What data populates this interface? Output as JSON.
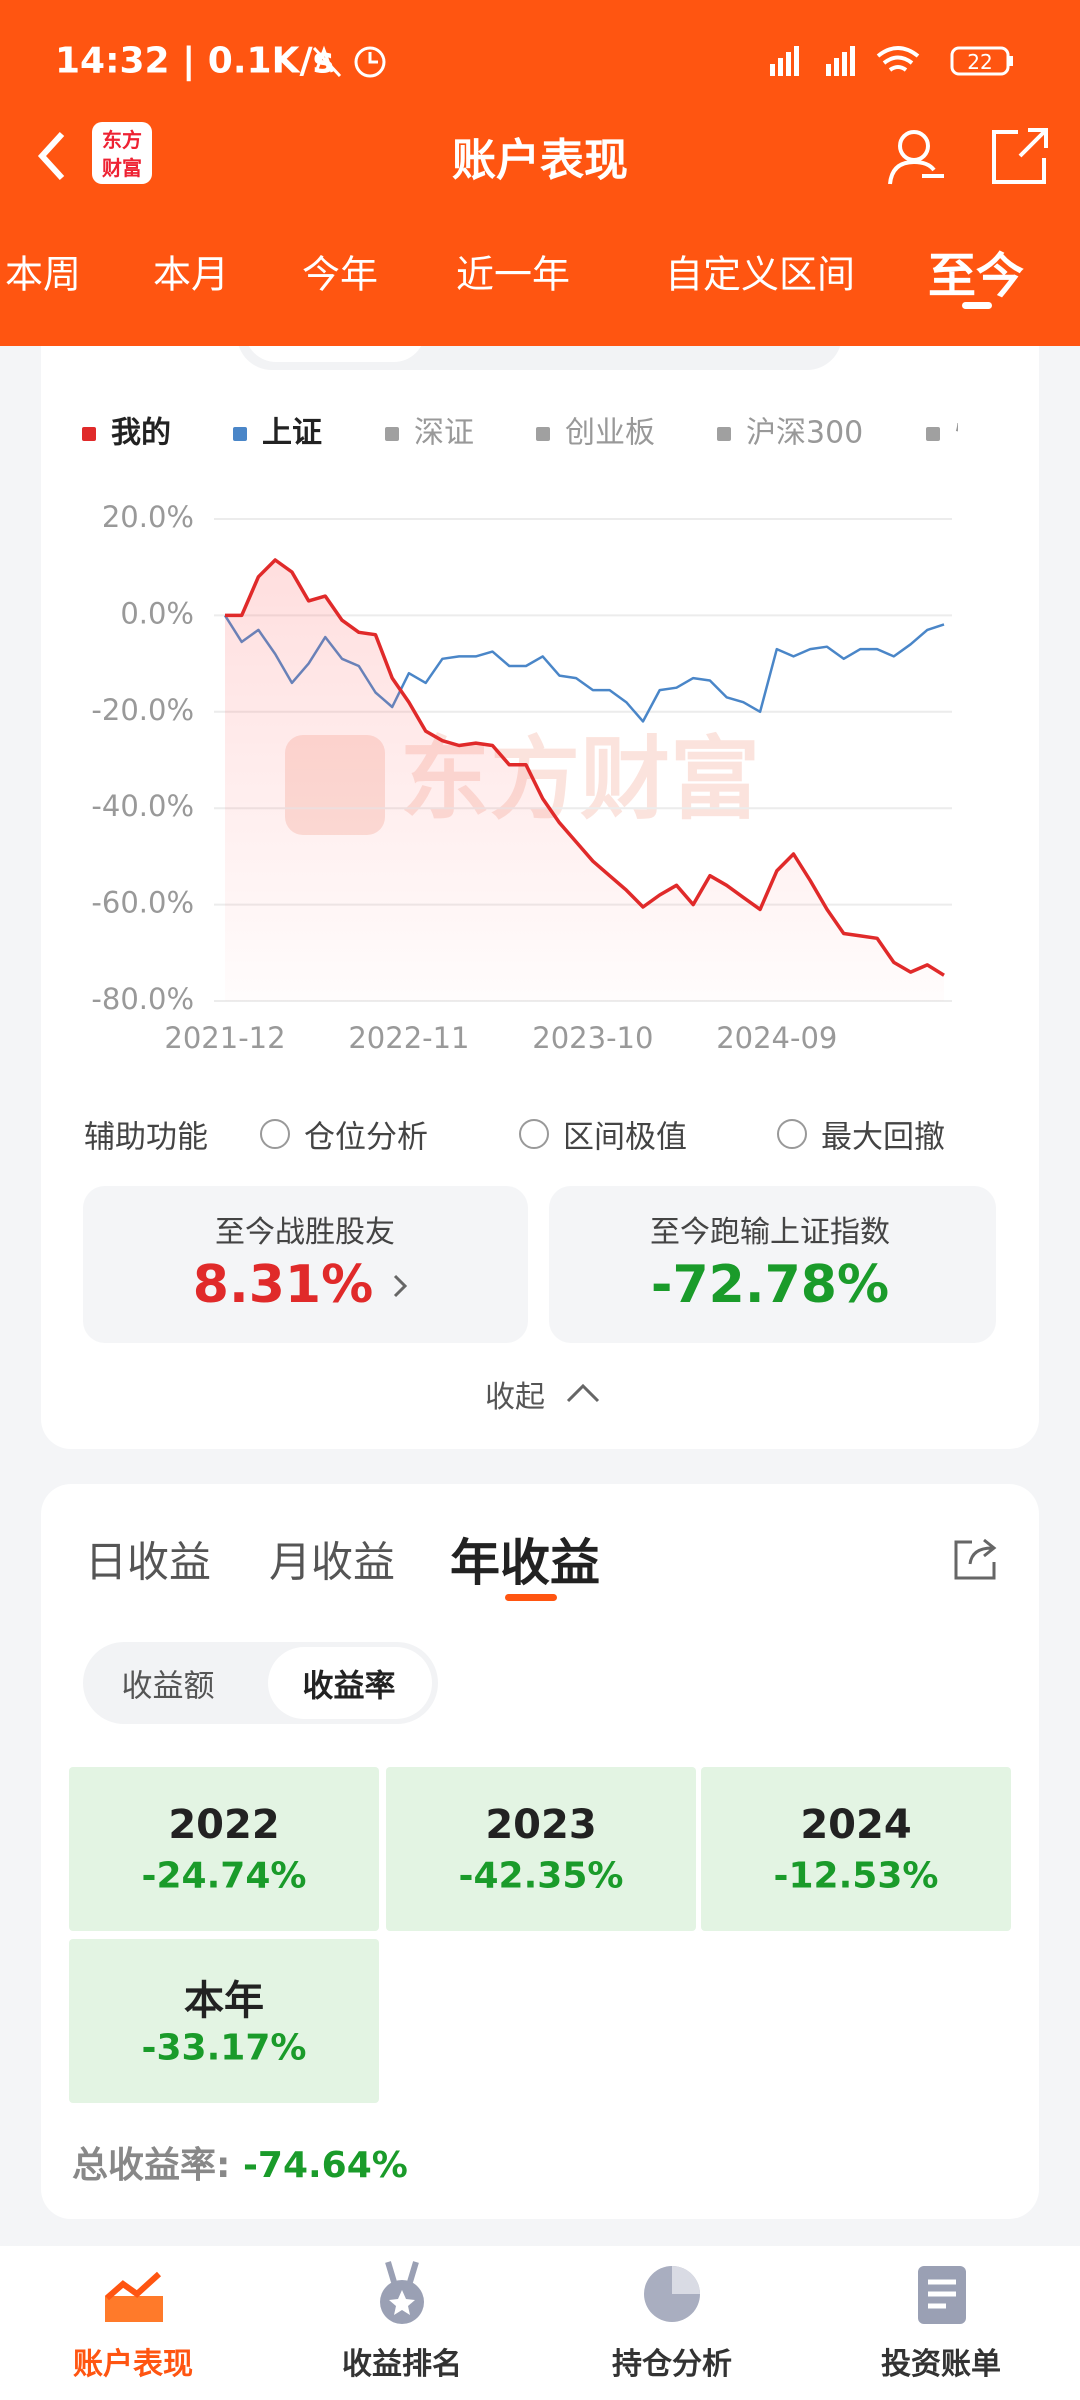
{
  "status_bar": {
    "time": "14:32 | 0.1K/s",
    "battery": "22"
  },
  "header": {
    "logo_top": "东方",
    "logo_bottom": "财富",
    "title": "账户表现"
  },
  "tabs": [
    "本周",
    "本月",
    "今年",
    "近一年",
    "自定义区间",
    "至今"
  ],
  "chart_data": {
    "type": "line",
    "categories": [
      "2021-12",
      "2022-01",
      "2022-02",
      "2022-03",
      "2022-04",
      "2022-05",
      "2022-06",
      "2022-07",
      "2022-08",
      "2022-09",
      "2022-10",
      "2022-11",
      "2022-12",
      "2023-01",
      "2023-02",
      "2023-03",
      "2023-04",
      "2023-05",
      "2023-06",
      "2023-07",
      "2023-08",
      "2023-09",
      "2023-10",
      "2023-11",
      "2023-12",
      "2024-01",
      "2024-02",
      "2024-03",
      "2024-04",
      "2024-05",
      "2024-06",
      "2024-07",
      "2024-08",
      "2024-09",
      "2024-10",
      "2024-11",
      "2024-12",
      "2025-01",
      "2025-02",
      "2025-03",
      "2025-04",
      "2025-05",
      "2025-06",
      "2025-07"
    ],
    "xticks": [
      "2021-12",
      "2022-11",
      "2023-10",
      "2024-09"
    ],
    "ylim": [
      -80,
      20
    ],
    "yticks": [
      {
        "value": -80,
        "label": "-80.0%"
      },
      {
        "value": -60,
        "label": "-60.0%"
      },
      {
        "value": -40,
        "label": "-40.0%"
      },
      {
        "value": -20,
        "label": "-20.0%"
      },
      {
        "value": 0,
        "label": "0.0%"
      },
      {
        "value": 20,
        "label": "20.0%"
      }
    ],
    "grid": true,
    "watermark": "东方财富",
    "series": [
      {
        "name": "我的",
        "color": "#e02a2a",
        "values": [
          0,
          0,
          8,
          11.5,
          9,
          3,
          4,
          -1,
          -3.5,
          -4,
          -13,
          -18,
          -24,
          -26,
          -27,
          -26.5,
          -27,
          -31,
          -31,
          -38,
          -43,
          -47,
          -51,
          -54,
          -57,
          -60.5,
          -58,
          -56,
          -60,
          -54,
          -56,
          -58.5,
          -61,
          -53,
          -49.5,
          -55,
          -61,
          -66,
          -66.5,
          -67,
          -72,
          -74,
          -72.5,
          -74.64
        ]
      },
      {
        "name": "上证",
        "color": "#4a86c8",
        "values": [
          0,
          -5.5,
          -3,
          -8,
          -14,
          -10,
          -4.5,
          -9,
          -10.5,
          -16,
          -19,
          -12,
          -14,
          -9,
          -8.5,
          -8.5,
          -7.5,
          -10.5,
          -10.5,
          -8.5,
          -12.5,
          -13,
          -15.5,
          -15.5,
          -18,
          -22,
          -15.5,
          -15,
          -13,
          -13.5,
          -17,
          -18,
          -20,
          -7,
          -8.5,
          -7,
          -6.5,
          -9,
          -7,
          -7,
          -8.5,
          -6,
          -3,
          -1.86
        ]
      }
    ],
    "legend_inactive": {
      "color": "#a0a0a0",
      "names": [
        "深证",
        "创业板",
        "沪深300",
        "恒"
      ]
    }
  },
  "assist": {
    "label": "辅助功能",
    "options": [
      "仓位分析",
      "区间极值",
      "最大回撤"
    ]
  },
  "stats": [
    {
      "label": "至今战胜股友",
      "value": "8.31%"
    },
    {
      "label": "至今跑输上证指数",
      "value": "-72.78%"
    }
  ],
  "collapse": "收起",
  "returns": {
    "tabs": [
      "日收益",
      "月收益",
      "年收益"
    ],
    "toggle": [
      "收益额",
      "收益率"
    ],
    "cells": [
      {
        "label": "2022",
        "value": "-24.74%"
      },
      {
        "label": "2023",
        "value": "-42.35%"
      },
      {
        "label": "2024",
        "value": "-12.53%"
      },
      {
        "label": "本年",
        "value": "-33.17%"
      }
    ],
    "total_label": "总收益率:",
    "total_value": "-74.64%"
  },
  "nav": [
    "账户表现",
    "收益排名",
    "持仓分析",
    "投资账单"
  ]
}
